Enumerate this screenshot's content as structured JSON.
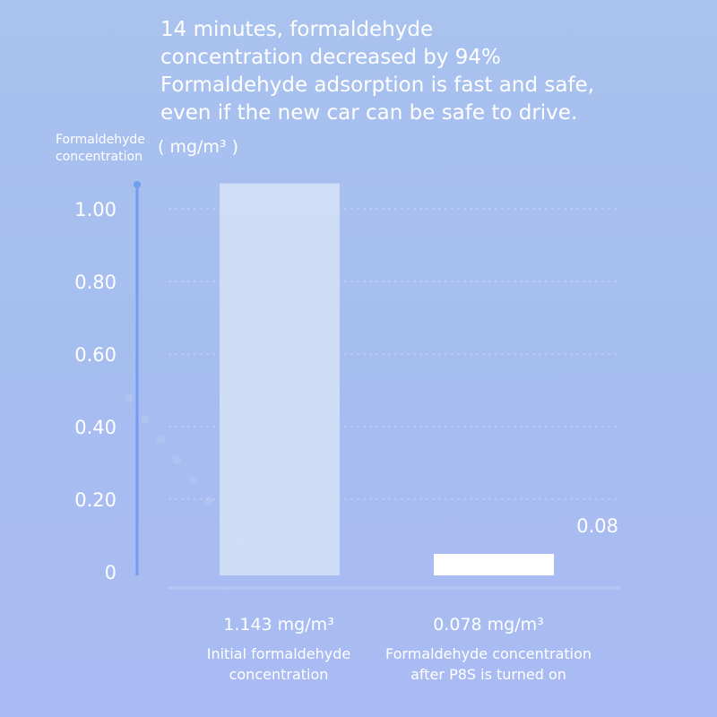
{
  "headline": {
    "line1": "14 minutes, formaldehyde",
    "line2": "concentration decreased by 94%",
    "line3": "Formaldehyde adsorption is fast and safe,",
    "line4": "even if the new car can be safe to drive."
  },
  "yaxis_title": {
    "line1": "Formaldehyde",
    "line2": "concentration"
  },
  "unit": "( mg/m³ )",
  "colors": {
    "axis": "#6f9ef0",
    "reference_line": "#7aa6ee",
    "bar_initial": "#d6e2f7",
    "bar_after": "#ffffff",
    "gridline": "#dde6f8"
  },
  "chart_data": {
    "type": "bar",
    "categories": [
      "Initial formaldehyde concentration",
      "Formaldehyde concentration after P8S is turned on"
    ],
    "values": [
      1.143,
      0.078
    ],
    "value_labels": [
      "1.143 mg/m³",
      "0.078 mg/m³"
    ],
    "reference_line": {
      "value": 0.08,
      "label": "0.08"
    },
    "yticks": [
      "0",
      "0.20",
      "0.40",
      "0.60",
      "0.80",
      "1.00"
    ],
    "ytick_values": [
      0,
      0.2,
      0.4,
      0.6,
      0.8,
      1.0
    ],
    "ylim": [
      0,
      1.07
    ],
    "grid": true,
    "notes": "y axis is compressed in the original artwork; the 0.08 reference line is drawn just above the 0.20 tick band"
  }
}
